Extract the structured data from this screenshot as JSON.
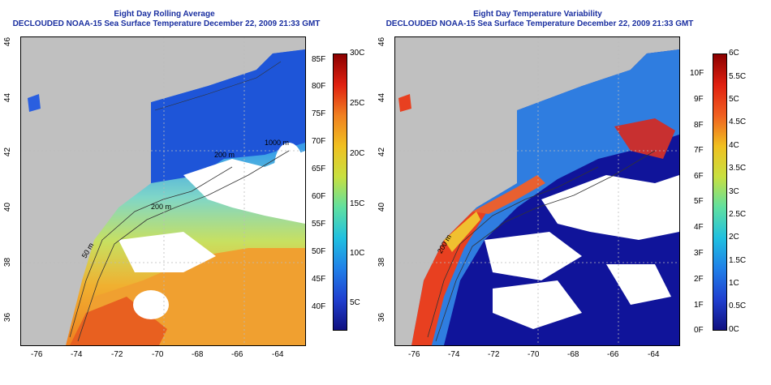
{
  "left_panel": {
    "title_line1": "Eight Day Rolling Average",
    "title_line2": "DECLOUDED NOAA-15 Sea Surface Temperature December 22, 2009 21:33 GMT",
    "x_ticks": [
      "-76",
      "-74",
      "-72",
      "-70",
      "-68",
      "-66",
      "-64"
    ],
    "y_ticks": [
      "46",
      "44",
      "42",
      "40",
      "38",
      "36"
    ],
    "contour_labels": [
      "50 m",
      "200 m",
      "200 m",
      "50 m",
      "1000 m"
    ],
    "colorbar_f": [
      "85F",
      "80F",
      "75F",
      "70F",
      "65F",
      "60F",
      "55F",
      "50F",
      "45F",
      "40F"
    ],
    "colorbar_c": [
      "30C",
      "25C",
      "20C",
      "15C",
      "10C",
      "5C"
    ]
  },
  "right_panel": {
    "title_line1": "Eight Day Temperature Variability",
    "title_line2": "DECLOUDED NOAA-15 Sea Surface Temperature December 22, 2009 21:33 GMT",
    "x_ticks": [
      "-76",
      "-74",
      "-72",
      "-70",
      "-68",
      "-66",
      "-64"
    ],
    "y_ticks": [
      "46",
      "44",
      "42",
      "40",
      "38",
      "36"
    ],
    "contour_labels": [
      "200 m"
    ],
    "colorbar_f": [
      "10F",
      "9F",
      "8F",
      "7F",
      "6F",
      "5F",
      "4F",
      "3F",
      "2F",
      "1F",
      "0F"
    ],
    "colorbar_c": [
      "6C",
      "5.5C",
      "5C",
      "4.5C",
      "4C",
      "3.5C",
      "3C",
      "2.5C",
      "2C",
      "1.5C",
      "1C",
      "0.5C",
      "0C"
    ]
  },
  "colors": {
    "title": "#1a2fa0",
    "land": "#c0c0c0",
    "cloud": "#ffffff"
  }
}
